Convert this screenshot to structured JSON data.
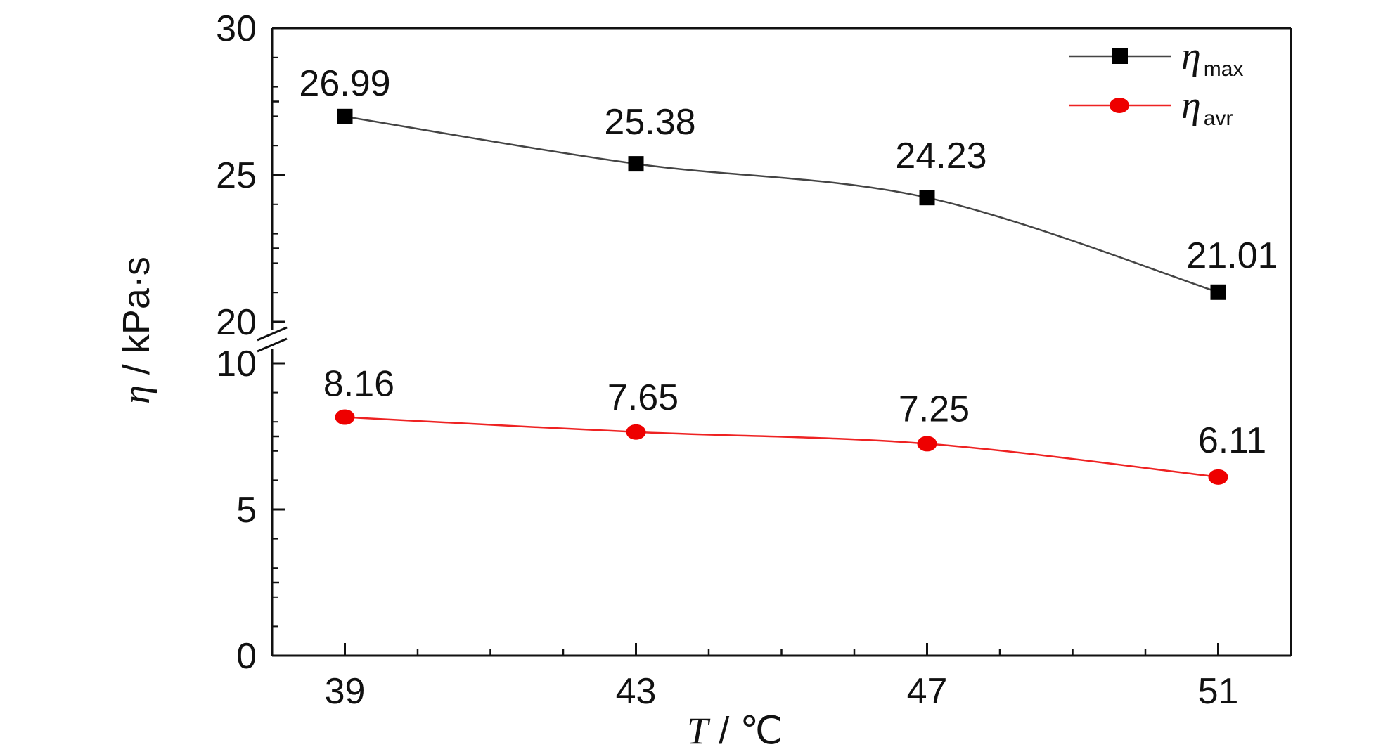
{
  "chart_data": {
    "type": "line",
    "xlabel": {
      "var": "T",
      "unit": " / ℃"
    },
    "ylabel": {
      "var": "η",
      "unit": " / kPa·s"
    },
    "x": [
      39,
      43,
      47,
      51
    ],
    "x_ticks": [
      "39",
      "43",
      "47",
      "51"
    ],
    "xlim": [
      38,
      52
    ],
    "y_axis_break": {
      "lower_range": [
        0,
        10
      ],
      "upper_range": [
        20,
        30
      ]
    },
    "y_ticks_lower": [
      "0",
      "5",
      "10"
    ],
    "y_ticks_upper": [
      "20",
      "25",
      "30"
    ],
    "grid": false,
    "legend_position": "top-right",
    "series": [
      {
        "name": "η",
        "name_sub": "max",
        "color": "#000000",
        "line_color": "#444444",
        "marker": "square",
        "values": [
          26.99,
          25.38,
          24.23,
          21.01
        ],
        "labels": [
          "26.99",
          "25.38",
          "24.23",
          "21.01"
        ]
      },
      {
        "name": "η",
        "name_sub": "avr",
        "color": "#ee0000",
        "line_color": "#ee2222",
        "marker": "circle",
        "values": [
          8.16,
          7.65,
          7.25,
          6.11
        ],
        "labels": [
          "8.16",
          "7.65",
          "7.25",
          "6.11"
        ]
      }
    ]
  }
}
